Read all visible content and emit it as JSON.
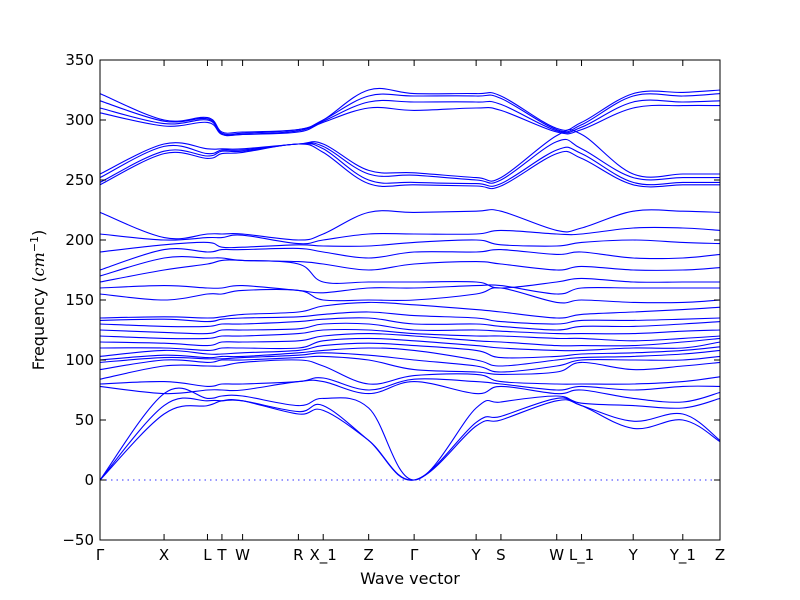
{
  "chart_data": {
    "type": "line",
    "title": "",
    "xlabel": "Wave vector",
    "ylabel_text": "Frequency (",
    "ylabel_unit": "cm",
    "ylabel_exp": "−1",
    "ylabel_close": ")",
    "ylim": [
      -50,
      350
    ],
    "yticks": [
      -50,
      0,
      50,
      100,
      150,
      200,
      250,
      300,
      350
    ],
    "ytick_labels": [
      "−50",
      "0",
      "50",
      "100",
      "150",
      "200",
      "250",
      "300",
      "350"
    ],
    "xlim": [
      0,
      30
    ],
    "xticks": [
      {
        "label": "Γ",
        "x": 0
      },
      {
        "label": "X",
        "x": 3.1
      },
      {
        "label": "L",
        "x": 5.2
      },
      {
        "label": "T",
        "x": 5.9
      },
      {
        "label": "W",
        "x": 6.9
      },
      {
        "label": "R",
        "x": 9.6
      },
      {
        "label": "X_1",
        "x": 10.8
      },
      {
        "label": "Z",
        "x": 13.0
      },
      {
        "label": "Γ",
        "x": 15.2
      },
      {
        "label": "Y",
        "x": 18.2
      },
      {
        "label": "S",
        "x": 19.4
      },
      {
        "label": "W",
        "x": 22.1
      },
      {
        "label": "L_1",
        "x": 23.3
      },
      {
        "label": "Y",
        "x": 25.8
      },
      {
        "label": "Y_1",
        "x": 28.2
      },
      {
        "label": "Z",
        "x": 30.0
      }
    ],
    "zero_line": 0,
    "series_color": "#0000ff",
    "x": [
      0,
      3.1,
      5.2,
      5.9,
      6.9,
      9.6,
      10.8,
      13.0,
      15.2,
      18.2,
      19.4,
      22.1,
      23.3,
      25.8,
      28.2,
      30.0
    ],
    "series": [
      {
        "values": [
          0,
          55,
          62,
          66,
          66,
          55,
          58,
          33,
          0,
          45,
          50,
          66,
          62,
          43,
          50,
          32
        ]
      },
      {
        "values": [
          0,
          62,
          66,
          66,
          66,
          57,
          62,
          33,
          0,
          48,
          53,
          68,
          62,
          49,
          55,
          33
        ]
      },
      {
        "values": [
          0,
          72,
          68,
          70,
          70,
          62,
          68,
          60,
          0,
          60,
          65,
          70,
          64,
          62,
          60,
          68
        ]
      },
      {
        "values": [
          78,
          72,
          75,
          75,
          75,
          82,
          82,
          72,
          82,
          72,
          78,
          72,
          75,
          68,
          65,
          73
        ]
      },
      {
        "values": [
          80,
          82,
          78,
          80,
          80,
          82,
          85,
          75,
          84,
          82,
          80,
          75,
          78,
          75,
          78,
          78
        ]
      },
      {
        "values": [
          84,
          95,
          95,
          95,
          98,
          100,
          95,
          80,
          87,
          88,
          82,
          80,
          80,
          80,
          82,
          86
        ]
      },
      {
        "values": [
          92,
          100,
          98,
          100,
          100,
          102,
          103,
          100,
          92,
          90,
          88,
          90,
          98,
          92,
          95,
          98
        ]
      },
      {
        "values": [
          98,
          102,
          101,
          101,
          102,
          104,
          106,
          104,
          100,
          95,
          90,
          95,
          100,
          100,
          100,
          103
        ]
      },
      {
        "values": [
          100,
          104,
          102,
          103,
          103,
          106,
          108,
          110,
          108,
          100,
          95,
          100,
          102,
          103,
          105,
          108
        ]
      },
      {
        "values": [
          103,
          108,
          105,
          105,
          106,
          108,
          112,
          114,
          112,
          108,
          102,
          103,
          105,
          106,
          108,
          111
        ]
      },
      {
        "values": [
          110,
          110,
          108,
          110,
          110,
          110,
          116,
          118,
          116,
          112,
          110,
          108,
          108,
          110,
          110,
          115
        ]
      },
      {
        "values": [
          115,
          114,
          112,
          115,
          115,
          116,
          120,
          122,
          120,
          116,
          115,
          112,
          112,
          112,
          115,
          118
        ]
      },
      {
        "values": [
          120,
          118,
          118,
          120,
          120,
          122,
          125,
          125,
          122,
          120,
          120,
          118,
          118,
          116,
          118,
          120
        ]
      },
      {
        "values": [
          125,
          123,
          122,
          125,
          125,
          126,
          130,
          130,
          125,
          125,
          124,
          122,
          122,
          122,
          124,
          125
        ]
      },
      {
        "values": [
          130,
          128,
          128,
          130,
          130,
          132,
          134,
          135,
          130,
          130,
          128,
          125,
          128,
          128,
          130,
          132
        ]
      },
      {
        "values": [
          133,
          134,
          132,
          134,
          135,
          136,
          138,
          140,
          137,
          135,
          132,
          130,
          133,
          133,
          134,
          135
        ]
      },
      {
        "values": [
          135,
          136,
          135,
          136,
          138,
          140,
          145,
          148,
          146,
          142,
          140,
          135,
          138,
          140,
          142,
          144
        ]
      },
      {
        "values": [
          155,
          150,
          155,
          155,
          158,
          158,
          150,
          150,
          150,
          155,
          160,
          148,
          150,
          148,
          148,
          150
        ]
      },
      {
        "values": [
          160,
          162,
          160,
          160,
          162,
          158,
          156,
          160,
          160,
          162,
          162,
          155,
          160,
          160,
          160,
          160
        ]
      },
      {
        "values": [
          165,
          175,
          180,
          183,
          183,
          180,
          165,
          165,
          165,
          165,
          160,
          165,
          168,
          165,
          165,
          165
        ]
      },
      {
        "values": [
          170,
          185,
          185,
          185,
          183,
          182,
          180,
          175,
          180,
          182,
          180,
          175,
          178,
          175,
          175,
          177
        ]
      },
      {
        "values": [
          175,
          192,
          190,
          192,
          192,
          193,
          190,
          185,
          190,
          190,
          192,
          188,
          190,
          185,
          185,
          188
        ]
      },
      {
        "values": [
          190,
          196,
          198,
          194,
          194,
          196,
          195,
          195,
          198,
          200,
          196,
          195,
          198,
          200,
          198,
          197
        ]
      },
      {
        "values": [
          205,
          200,
          202,
          202,
          204,
          197,
          200,
          205,
          205,
          205,
          208,
          205,
          205,
          210,
          210,
          208
        ]
      },
      {
        "values": [
          223,
          202,
          205,
          205,
          205,
          200,
          205,
          223,
          223,
          224,
          224,
          208,
          210,
          224,
          224,
          223
        ]
      },
      {
        "values": [
          246,
          272,
          268,
          272,
          273,
          280,
          273,
          247,
          246,
          245,
          245,
          272,
          268,
          246,
          246,
          246
        ]
      },
      {
        "values": [
          248,
          274,
          270,
          274,
          274,
          280,
          276,
          250,
          248,
          247,
          247,
          275,
          272,
          248,
          248,
          248
        ]
      },
      {
        "values": [
          252,
          278,
          272,
          275,
          275,
          280,
          278,
          255,
          254,
          250,
          250,
          282,
          276,
          252,
          252,
          252
        ]
      },
      {
        "values": [
          255,
          280,
          276,
          276,
          276,
          280,
          280,
          258,
          256,
          252,
          252,
          287,
          288,
          255,
          255,
          255
        ]
      },
      {
        "values": [
          306,
          295,
          298,
          288,
          288,
          290,
          298,
          310,
          308,
          310,
          308,
          290,
          292,
          310,
          312,
          312
        ]
      },
      {
        "values": [
          310,
          297,
          300,
          288,
          288,
          291,
          299,
          315,
          315,
          315,
          313,
          291,
          294,
          315,
          315,
          316
        ]
      },
      {
        "values": [
          316,
          299,
          301,
          289,
          289,
          292,
          300,
          320,
          320,
          320,
          318,
          292,
          296,
          320,
          320,
          322
        ]
      },
      {
        "values": [
          322,
          300,
          302,
          290,
          290,
          292,
          300,
          325,
          322,
          322,
          320,
          293,
          298,
          322,
          323,
          325
        ]
      }
    ]
  }
}
